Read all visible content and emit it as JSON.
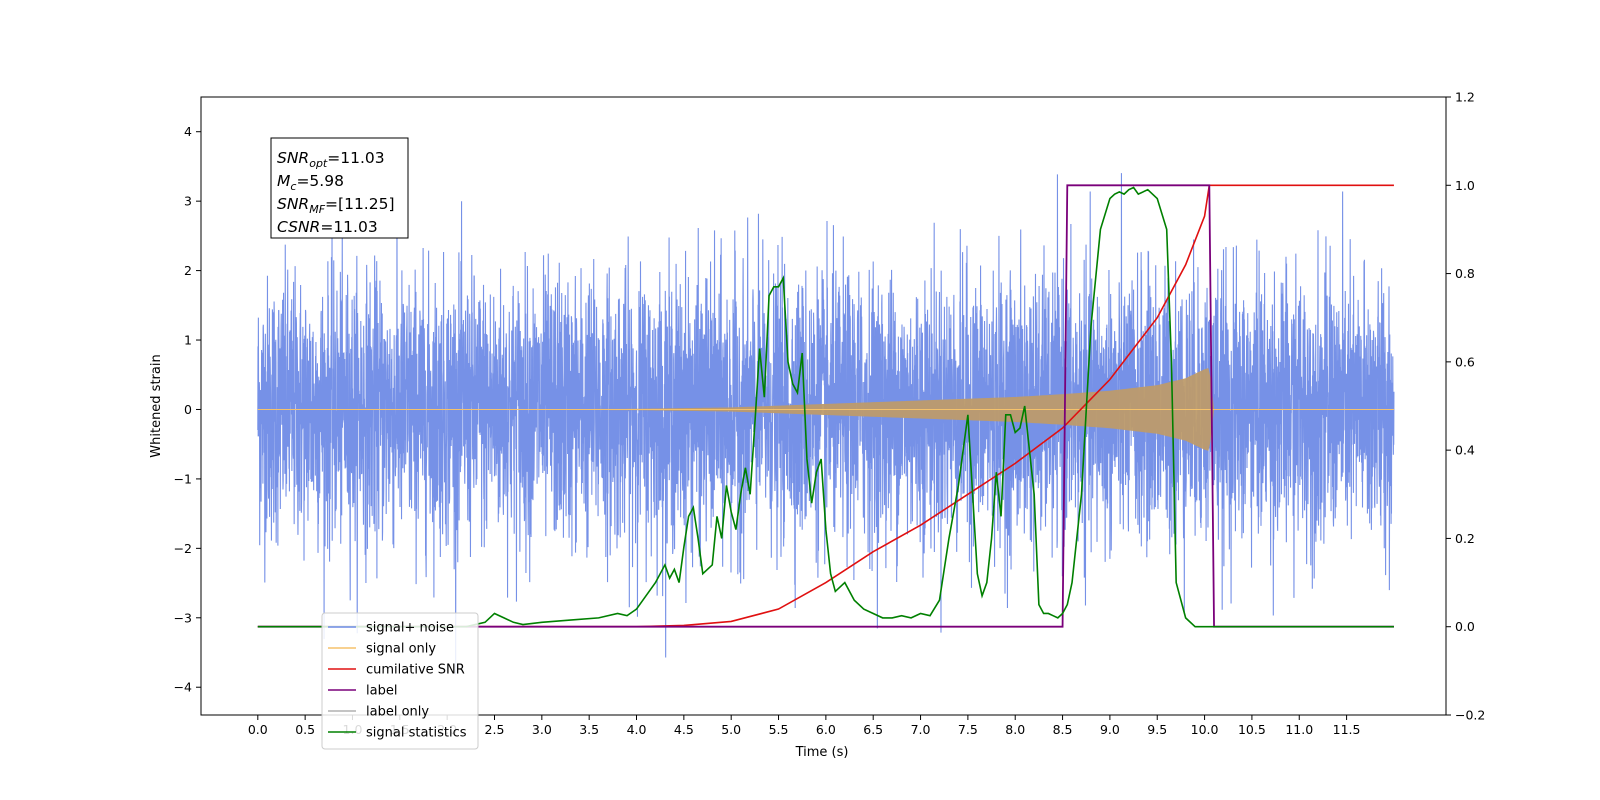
{
  "chart_data": {
    "type": "line",
    "xlabel": "Time (s)",
    "ylabel": "Whitened strain",
    "xlim": [
      -0.6,
      12.55
    ],
    "ylim_left": [
      -4.4,
      4.5
    ],
    "ylim_right": [
      -0.2,
      1.2
    ],
    "x_ticks": [
      "0.0",
      "0.5",
      "1.0",
      "1.5",
      "2.0",
      "2.5",
      "3.0",
      "3.5",
      "4.0",
      "4.5",
      "5.0",
      "5.5",
      "6.0",
      "6.5",
      "7.0",
      "7.5",
      "8.0",
      "8.5",
      "9.0",
      "9.5",
      "10.0",
      "10.5",
      "11.0",
      "11.5"
    ],
    "y_ticks_left": [
      "4",
      "3",
      "2",
      "1",
      "0",
      "−1",
      "−2",
      "−3",
      "−4"
    ],
    "y_ticks_right": [
      "1.2",
      "1.0",
      "0.8",
      "0.6",
      "0.4",
      "0.2",
      "0.0",
      "−0.2"
    ],
    "annotation": {
      "lines": [
        {
          "base": "SNR",
          "sub": "opt",
          "rest": "=11.03"
        },
        {
          "base": "M",
          "sub": "c",
          "rest": "=5.98"
        },
        {
          "base": "SNR",
          "sub": "MF",
          "rest": "=[11.25]"
        },
        {
          "base": "CSNR",
          "sub": "",
          "rest": "=11.03"
        }
      ]
    },
    "legend": {
      "position": "lower-left",
      "entries": [
        {
          "label": "signal+ noise",
          "color": "#6f8be6"
        },
        {
          "label": "signal only",
          "color": "#f5c26b"
        },
        {
          "label": "cumilative SNR",
          "color": "#e01010"
        },
        {
          "label": "label",
          "color": "#7a007a"
        },
        {
          "label": "label only",
          "color": "#b0b0b0"
        },
        {
          "label": "signal statistics",
          "color": "#008000"
        }
      ]
    },
    "series": [
      {
        "name": "signal+ noise",
        "axis": "left",
        "color": "#6f8be6",
        "noise_std": 0.95,
        "x_range": [
          0.0,
          12.0
        ]
      },
      {
        "name": "signal only",
        "axis": "left",
        "color": "#f5c26b",
        "fill_color": "#bd9b6c",
        "envelope_x": [
          0.0,
          2.0,
          4.0,
          5.0,
          6.0,
          7.0,
          8.0,
          8.5,
          9.0,
          9.5,
          9.8,
          10.0,
          10.05,
          10.1,
          12.0
        ],
        "envelope_y": [
          0.0,
          0.0,
          0.01,
          0.03,
          0.08,
          0.13,
          0.18,
          0.22,
          0.27,
          0.35,
          0.45,
          0.58,
          0.6,
          0.0,
          0.0
        ]
      },
      {
        "name": "cumilative SNR",
        "axis": "right",
        "color": "#e01010",
        "x": [
          0.0,
          2.0,
          4.0,
          4.5,
          5.0,
          5.5,
          6.0,
          6.5,
          7.0,
          7.5,
          8.0,
          8.5,
          9.0,
          9.5,
          9.8,
          10.0,
          10.05,
          12.0
        ],
        "y": [
          0.0,
          0.0,
          0.0,
          0.003,
          0.012,
          0.04,
          0.1,
          0.17,
          0.23,
          0.3,
          0.37,
          0.45,
          0.56,
          0.7,
          0.82,
          0.93,
          1.0,
          1.0
        ]
      },
      {
        "name": "label",
        "axis": "right",
        "color": "#7a007a",
        "x": [
          0.0,
          8.5,
          8.55,
          10.05,
          10.1,
          10.15,
          12.0
        ],
        "y": [
          0.0,
          0.0,
          1.0,
          1.0,
          0.0,
          0.0,
          0.0
        ]
      },
      {
        "name": "signal statistics",
        "axis": "right",
        "color": "#008000",
        "x": [
          0.0,
          2.2,
          2.4,
          2.5,
          2.6,
          2.7,
          2.8,
          3.0,
          3.3,
          3.6,
          3.8,
          3.9,
          4.0,
          4.1,
          4.2,
          4.3,
          4.35,
          4.4,
          4.45,
          4.5,
          4.55,
          4.6,
          4.65,
          4.7,
          4.75,
          4.8,
          4.85,
          4.9,
          4.95,
          5.0,
          5.05,
          5.1,
          5.15,
          5.2,
          5.25,
          5.3,
          5.35,
          5.4,
          5.45,
          5.5,
          5.55,
          5.6,
          5.65,
          5.7,
          5.75,
          5.8,
          5.85,
          5.9,
          5.95,
          6.0,
          6.05,
          6.1,
          6.2,
          6.3,
          6.4,
          6.5,
          6.6,
          6.7,
          6.8,
          6.9,
          7.0,
          7.1,
          7.2,
          7.3,
          7.4,
          7.5,
          7.55,
          7.6,
          7.65,
          7.7,
          7.75,
          7.8,
          7.85,
          7.9,
          7.95,
          8.0,
          8.05,
          8.1,
          8.15,
          8.2,
          8.25,
          8.3,
          8.35,
          8.4,
          8.45,
          8.5,
          8.55,
          8.6,
          8.7,
          8.8,
          8.9,
          9.0,
          9.05,
          9.1,
          9.15,
          9.2,
          9.25,
          9.3,
          9.4,
          9.5,
          9.6,
          9.65,
          9.7,
          9.8,
          9.9,
          9.95,
          10.0,
          10.05,
          10.1,
          10.2,
          12.0
        ],
        "y": [
          0.0,
          0.0,
          0.01,
          0.03,
          0.02,
          0.01,
          0.005,
          0.01,
          0.015,
          0.02,
          0.03,
          0.025,
          0.04,
          0.07,
          0.1,
          0.14,
          0.11,
          0.13,
          0.1,
          0.18,
          0.25,
          0.27,
          0.2,
          0.12,
          0.13,
          0.14,
          0.25,
          0.2,
          0.32,
          0.26,
          0.22,
          0.3,
          0.36,
          0.3,
          0.46,
          0.63,
          0.52,
          0.75,
          0.77,
          0.77,
          0.79,
          0.6,
          0.55,
          0.53,
          0.62,
          0.38,
          0.28,
          0.35,
          0.38,
          0.22,
          0.12,
          0.08,
          0.1,
          0.06,
          0.04,
          0.03,
          0.02,
          0.02,
          0.025,
          0.02,
          0.03,
          0.025,
          0.06,
          0.2,
          0.32,
          0.48,
          0.3,
          0.12,
          0.07,
          0.1,
          0.2,
          0.35,
          0.25,
          0.48,
          0.48,
          0.44,
          0.45,
          0.5,
          0.4,
          0.3,
          0.05,
          0.03,
          0.03,
          0.025,
          0.02,
          0.03,
          0.05,
          0.1,
          0.3,
          0.68,
          0.9,
          0.97,
          0.98,
          0.985,
          0.98,
          0.99,
          0.995,
          0.98,
          0.99,
          0.97,
          0.9,
          0.6,
          0.1,
          0.02,
          0.0,
          0.0,
          0.0,
          0.0,
          0.0,
          0.0,
          0.0
        ]
      }
    ]
  }
}
